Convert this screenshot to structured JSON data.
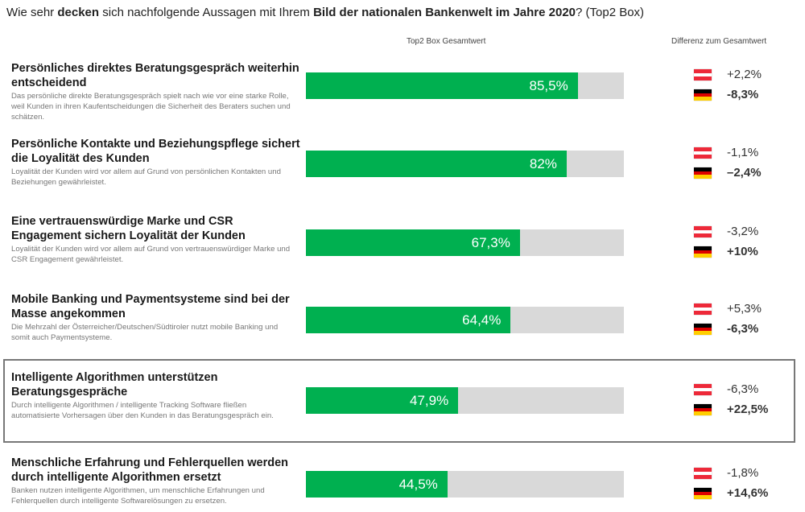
{
  "chart_data": {
    "type": "bar",
    "orientation": "horizontal",
    "title": [
      {
        "text": "Wie sehr ",
        "bold": false
      },
      {
        "text": "decken",
        "bold": true
      },
      {
        "text": " sich nachfolgende Aussagen mit Ihrem ",
        "bold": false
      },
      {
        "text": "Bild der nationalen Bankenwelt im Jahre 2020",
        "bold": true
      },
      {
        "text": "? (Top2 Box)",
        "bold": false
      }
    ],
    "value_axis_label": "Top2 Box Gesamtwert",
    "difference_label": "Differenz zum Gesamtwert",
    "categories": [
      "Persönliches direktes Beratungsgespräch weiterhin entscheidend",
      "Persönliche Kontakte und Beziehungspflege sichert die Loyalität des Kunden",
      "Eine vertrauenswürdige  Marke und CSR Engagement sichern Loyalität der Kunden",
      "Mobile Banking und Paymentsysteme sind bei der Masse angekommen",
      "Intelligente Algorithmen unterstützen Beratungsgespräche",
      "Menschliche Erfahrung und Fehlerquellen werden durch intelligente Algorithmen ersetzt"
    ],
    "descriptions": [
      "Das persönliche direkte Beratungsgespräch spielt nach wie vor eine starke Rolle, weil Kunden in ihren Kaufentscheidungen die Sicherheit des Beraters suchen und schätzen.",
      "Loyalität der Kunden wird vor allem auf Grund von persönlichen Kontakten und Beziehungen gewährleistet.",
      "Loyalität der Kunden wird vor allem auf Grund von vertrauenswürdiger Marke und CSR Engagement gewährleistet.",
      "Die Mehrzahl der Österreicher/Deutschen/Südtiroler nutzt mobile Banking und somit auch Paymentsysteme.",
      "Durch intelligente Algorithmen / intelligente Tracking Software fließen automatisierte Vorhersagen über den Kunden in das Beratungsgespräch ein.",
      "Banken nutzen intelligente Algorithmen, um menschliche Erfahrungen und Fehlerquellen durch intelligente Softwarelösungen zu ersetzen."
    ],
    "values": [
      85.5,
      82,
      67.3,
      64.4,
      47.9,
      44.5
    ],
    "value_labels": [
      "85,5%",
      "82%",
      "67,3%",
      "64,4%",
      "47,9%",
      "44,5%"
    ],
    "xlim": [
      0,
      100
    ],
    "color": "#00b050",
    "track_color": "#d9d9d9",
    "highlight": 4,
    "differences": [
      {
        "flag": [
          "#ed2939",
          "#ffffff",
          "#ed2939"
        ],
        "values": [
          2.2,
          -1.1,
          -3.2,
          5.3,
          -6.3,
          -1.8
        ],
        "value_labels": [
          "+2,2%",
          "-1,1%",
          "-3,2%",
          "+5,3%",
          "-6,3%",
          "-1,8%"
        ]
      },
      {
        "flag": [
          "#000000",
          "#dd0000",
          "#ffce00"
        ],
        "values": [
          -8.3,
          -2.4,
          10,
          -6.3,
          22.5,
          14.6
        ],
        "value_labels": [
          "-8,3%",
          "–2,4%",
          "+10%",
          "-6,3%",
          "+22,5%",
          "+14,6%"
        ]
      }
    ]
  }
}
